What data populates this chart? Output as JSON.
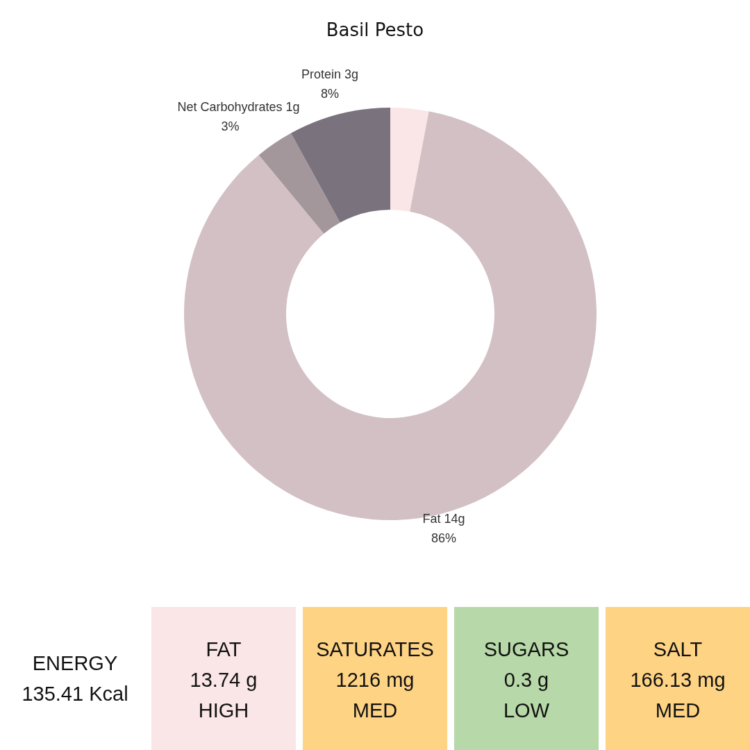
{
  "chart_data": [
    {
      "type": "donut",
      "title": "Basil Pesto",
      "categories": [
        null,
        "Fat 14g",
        "Net Carbohydrates 1g",
        "Protein 3g"
      ],
      "values": [
        3,
        86,
        3,
        8
      ],
      "colors": [
        "#fae6e6",
        "#d2c0c4",
        "#a4979c",
        "#7a727d"
      ],
      "value_labels": [
        null,
        "86%",
        "3%",
        "8%"
      ],
      "legend": false
    },
    {
      "type": "other",
      "annotations": [
        "ENERGY\n135.41 Kcal",
        "FAT\n13.74 g\nHIGH",
        "SATURATES\n1216 mg\nMED",
        "SUGARS\n0.3 g\nLOW",
        "SALT\n166.13 mg\nMED"
      ]
    }
  ]
}
